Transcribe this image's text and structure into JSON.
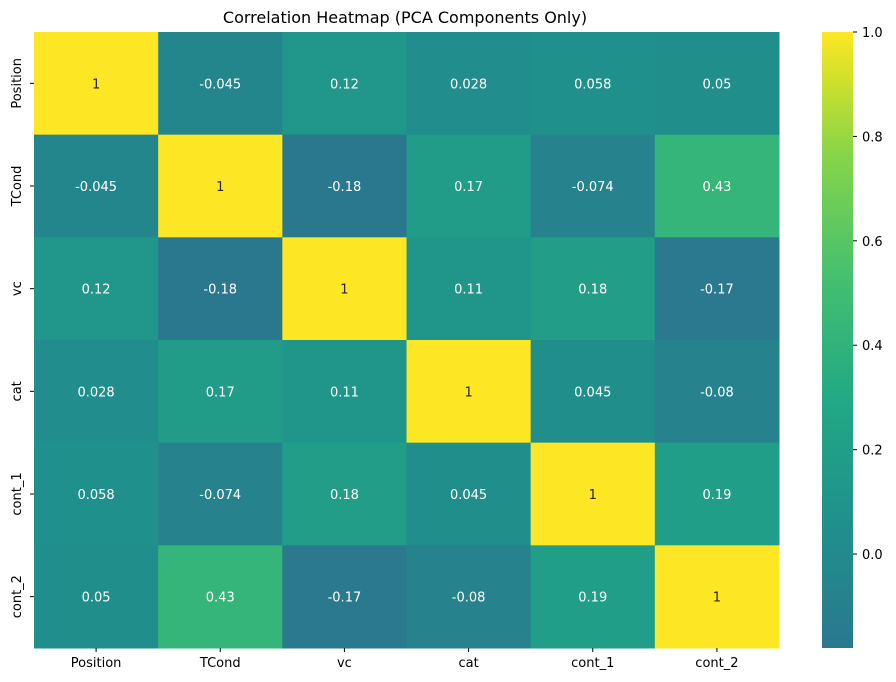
{
  "chart_data": {
    "type": "heatmap",
    "title": "Correlation Heatmap (PCA Components Only)",
    "row_labels": [
      "Position",
      "TCond",
      "vc",
      "cat",
      "cont_1",
      "cont_2"
    ],
    "col_labels": [
      "Position",
      "TCond",
      "vc",
      "cat",
      "cont_1",
      "cont_2"
    ],
    "values": [
      [
        1,
        -0.045,
        0.12,
        0.028,
        0.058,
        0.05
      ],
      [
        -0.045,
        1,
        -0.18,
        0.17,
        -0.074,
        0.43
      ],
      [
        0.12,
        -0.18,
        1,
        0.11,
        0.18,
        -0.17
      ],
      [
        0.028,
        0.17,
        0.11,
        1,
        0.045,
        -0.08
      ],
      [
        0.058,
        -0.074,
        0.18,
        0.045,
        1,
        0.19
      ],
      [
        0.05,
        0.43,
        -0.17,
        -0.08,
        0.19,
        1
      ]
    ],
    "annotations": [
      [
        "1",
        "-0.045",
        "0.12",
        "0.028",
        "0.058",
        "0.05"
      ],
      [
        "-0.045",
        "1",
        "-0.18",
        "0.17",
        "-0.074",
        "0.43"
      ],
      [
        "0.12",
        "-0.18",
        "1",
        "0.11",
        "0.18",
        "-0.17"
      ],
      [
        "0.028",
        "0.17",
        "0.11",
        "1",
        "0.045",
        "-0.08"
      ],
      [
        "0.058",
        "-0.074",
        "0.18",
        "0.045",
        "1",
        "0.19"
      ],
      [
        "0.05",
        "0.43",
        "-0.17",
        "-0.08",
        "0.19",
        "1"
      ]
    ],
    "colormap": "viridis",
    "vmin": -0.18,
    "vmax": 1,
    "colorbar_ticks": [
      0.0,
      0.2,
      0.4,
      0.6,
      0.8,
      1.0
    ],
    "colorbar_tick_labels": [
      "0.0",
      "0.2",
      "0.4",
      "0.6",
      "0.8",
      "1.0"
    ],
    "annotation_dark_color": "#262626",
    "annotation_light_color": "#ffffff"
  }
}
